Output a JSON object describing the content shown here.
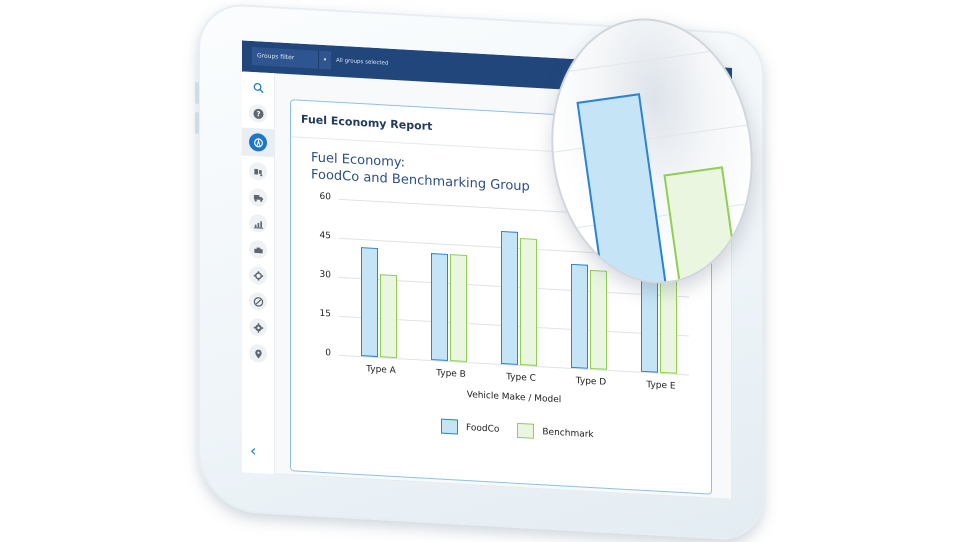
{
  "topbar": {
    "groups_filter_label": "Groups filter",
    "groups_filter_caret": "▾",
    "groups_status": "All groups selected"
  },
  "sidebar": {
    "items": [
      {
        "name": "search",
        "icon": "search-icon"
      },
      {
        "name": "help",
        "icon": "help-icon"
      },
      {
        "name": "fuel-economy",
        "icon": "fuel-gauge-icon",
        "active": true
      },
      {
        "name": "vehicles",
        "icon": "vehicle-icon"
      },
      {
        "name": "trucks",
        "icon": "truck-icon"
      },
      {
        "name": "reports",
        "icon": "chart-icon"
      },
      {
        "name": "engine",
        "icon": "engine-icon"
      },
      {
        "name": "maintenance",
        "icon": "cog-wheel-icon"
      },
      {
        "name": "compliance",
        "icon": "compass-icon"
      },
      {
        "name": "settings",
        "icon": "gear-icon"
      },
      {
        "name": "locations",
        "icon": "map-pin-icon"
      }
    ],
    "collapse_glyph": "‹"
  },
  "report": {
    "title": "Fuel Economy Report"
  },
  "colors": {
    "topbar": "#21467c",
    "accent": "#1d76c8",
    "foodco_fill": "#c5e5f6",
    "foodco_stroke": "#2a84d4",
    "benchmark_fill": "#eaf6e0",
    "benchmark_stroke": "#8fcf54"
  },
  "chart_data": {
    "type": "bar",
    "title": "Fuel Economy:",
    "subtitle": "FoodCo and Benchmarking Group",
    "xlabel": "Vehicle Make / Model",
    "ylabel": "",
    "ylim": [
      0,
      60
    ],
    "yticks": [
      0,
      15,
      30,
      45,
      60
    ],
    "grid": true,
    "legend_position": "bottom",
    "categories": [
      "Type A",
      "Type B",
      "Type C",
      "Type D",
      "Type E"
    ],
    "series": [
      {
        "name": "FoodCo",
        "values": [
          42,
          41,
          51,
          40,
          54
        ]
      },
      {
        "name": "Benchmark",
        "values": [
          32,
          41,
          49,
          38,
          37
        ]
      }
    ]
  }
}
